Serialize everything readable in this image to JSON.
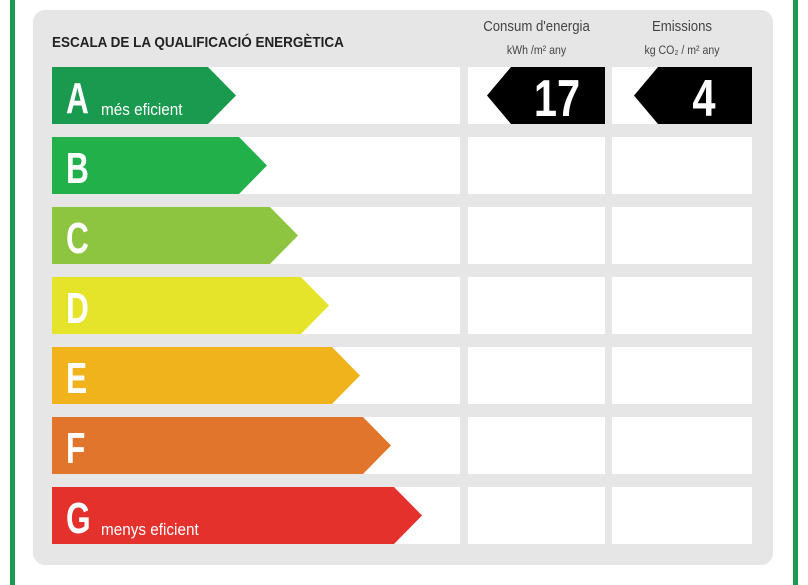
{
  "title": "ESCALA DE LA QUALIFICACIÓ ENERGÈTICA",
  "columns": [
    {
      "name": "Consum d'energia",
      "unit": "kWh /m² any",
      "value": 17
    },
    {
      "name": "Emissions",
      "unit": "kg CO₂ / m² any",
      "value": 4
    }
  ],
  "ratings": [
    {
      "letter": "A",
      "label": "més eficient",
      "color": "#1a9a4f"
    },
    {
      "letter": "B",
      "color": "#22b04b"
    },
    {
      "letter": "C",
      "color": "#8dc540"
    },
    {
      "letter": "D",
      "color": "#e6e42a"
    },
    {
      "letter": "E",
      "color": "#f0b31c"
    },
    {
      "letter": "F",
      "color": "#e0752b"
    },
    {
      "letter": "G",
      "label": "menys eficient",
      "color": "#e4312c"
    }
  ]
}
